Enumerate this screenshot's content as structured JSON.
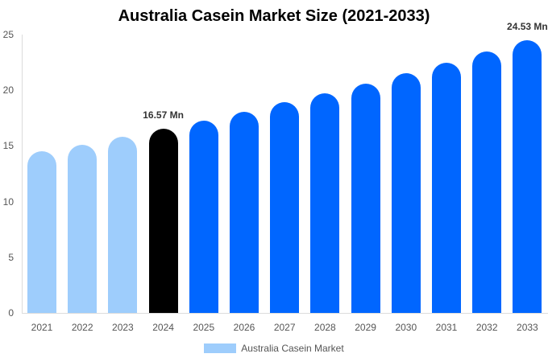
{
  "chart_data": {
    "type": "bar",
    "title": "Australia Casein Market Size (2021-2033)",
    "xlabel": "",
    "ylabel": "",
    "ylim": [
      0,
      25
    ],
    "yticks": [
      0,
      5,
      10,
      15,
      20,
      25
    ],
    "grid": false,
    "legend_position": "bottom",
    "categories": [
      "2021",
      "2022",
      "2023",
      "2024",
      "2025",
      "2026",
      "2027",
      "2028",
      "2029",
      "2030",
      "2031",
      "2032",
      "2033"
    ],
    "series": [
      {
        "name": "Australia Casein Market",
        "values": [
          14.5,
          15.1,
          15.8,
          16.57,
          17.3,
          18.1,
          18.9,
          19.7,
          20.6,
          21.5,
          22.5,
          23.5,
          24.53
        ]
      }
    ],
    "bar_colors": [
      "#9ecdfc",
      "#9ecdfc",
      "#9ecdfc",
      "#000000",
      "#0066ff",
      "#0066ff",
      "#0066ff",
      "#0066ff",
      "#0066ff",
      "#0066ff",
      "#0066ff",
      "#0066ff",
      "#0066ff"
    ],
    "annotations": [
      {
        "category": "2024",
        "text": "16.57 Mn"
      },
      {
        "category": "2033",
        "text": "24.53 Mn"
      }
    ]
  },
  "legend": {
    "label": "Australia Casein Market",
    "color": "#9ecdfc"
  }
}
